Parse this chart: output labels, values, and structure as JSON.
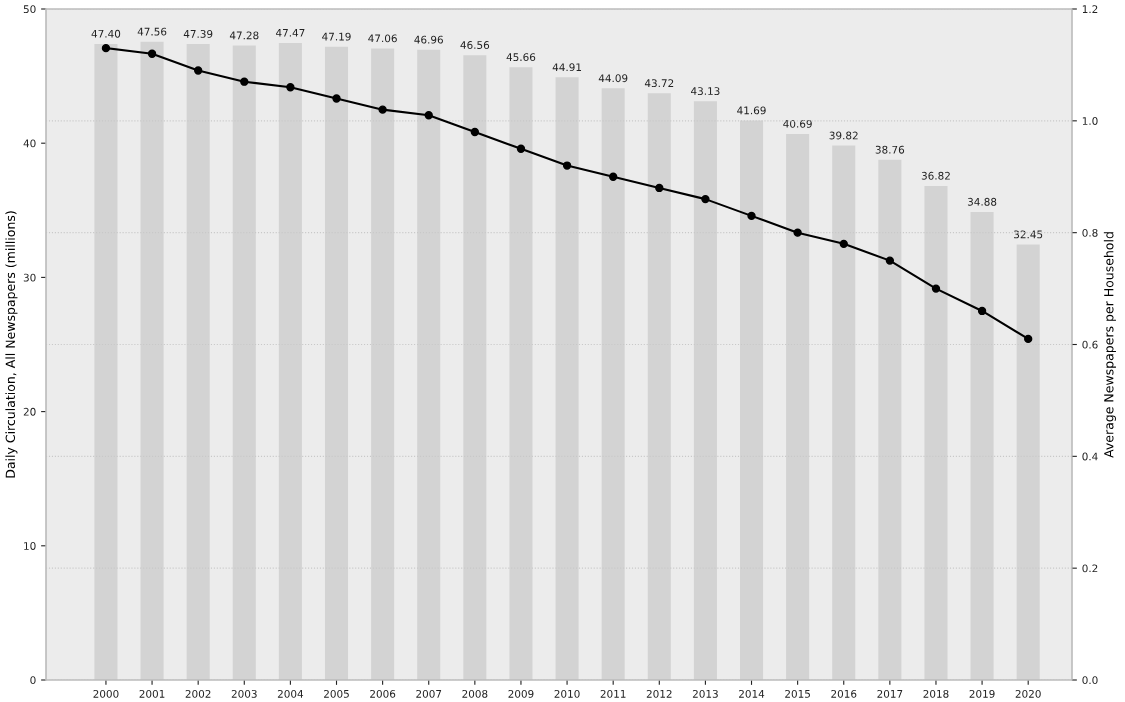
{
  "chart_data": {
    "type": "bar",
    "categories": [
      "2000",
      "2001",
      "2002",
      "2003",
      "2004",
      "2005",
      "2006",
      "2007",
      "2008",
      "2009",
      "2010",
      "2011",
      "2012",
      "2013",
      "2014",
      "2015",
      "2016",
      "2017",
      "2018",
      "2019",
      "2020"
    ],
    "ylabel": "Daily Circulation, All Newspapers (millions)",
    "y2label": "Average Newspapers per Household",
    "series": [
      {
        "color": "#d3d3d3",
        "values": [
          47.4,
          47.56,
          47.39,
          47.28,
          47.47,
          47.19,
          47.06,
          46.96,
          46.56,
          45.66,
          44.91,
          44.09,
          43.72,
          43.13,
          41.69,
          40.69,
          39.82,
          38.76,
          36.82,
          34.88,
          32.45
        ],
        "value_labels": [
          "47.40",
          "47.56",
          "47.39",
          "47.28",
          "47.47",
          "47.19",
          "47.06",
          "46.96",
          "46.56",
          "45.66",
          "44.91",
          "44.09",
          "43.72",
          "43.13",
          "41.69",
          "40.69",
          "39.82",
          "38.76",
          "36.82",
          "34.88",
          "32.45"
        ]
      },
      {
        "type": "line",
        "axis": "y2",
        "color": "#000000",
        "values": [
          1.13,
          1.12,
          1.09,
          1.07,
          1.06,
          1.04,
          1.02,
          1.01,
          0.98,
          0.95,
          0.92,
          0.9,
          0.88,
          0.86,
          0.83,
          0.8,
          0.78,
          0.75,
          0.7,
          0.66,
          0.61
        ]
      }
    ],
    "ylim": [
      0,
      50
    ],
    "yticks": [
      0,
      10,
      20,
      30,
      40,
      50
    ],
    "y2lim": [
      0,
      1.2
    ],
    "y2ticks": [
      {
        "value": 0,
        "label": "0.0"
      },
      0.2,
      0.4,
      0.6,
      0.8,
      {
        "value": 1,
        "label": "1.0"
      },
      1.2
    ],
    "grid": true,
    "marker": "circle",
    "line_style": "solid"
  }
}
